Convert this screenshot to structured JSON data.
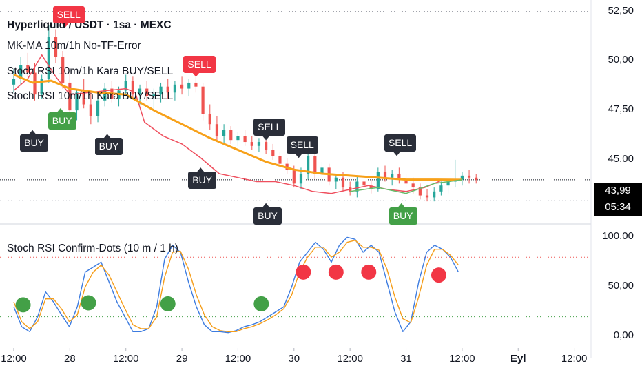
{
  "legend": {
    "symbol": "Hyperliquid / USDT · 1sa · MEXC",
    "ind1": "MK-MA 10m/1h No-TF-Error",
    "ind2": "Stoch RSI 10m/1h Kara BUY/SELL",
    "ind3": "Stoch RSI 10m/1h Kara BUY/SELL",
    "ind4": "Stoch RSI Confirm-Dots (10 m / 1 h)"
  },
  "colors": {
    "up": "#26a69a",
    "down": "#ef5350",
    "ma_orange": "#f7a11a",
    "ma_red": "#ef4f5e",
    "ma_green": "#66bb6a",
    "k_line": "#3d7ce0",
    "d_line": "#f59e1b",
    "dot_green": "#43a047",
    "dot_red": "#f23645",
    "label_dark": "#2a2e39"
  },
  "price_box": {
    "price": "43,99",
    "countdown": "05:34"
  },
  "chart_data": [
    {
      "type": "candlestick",
      "name": "price",
      "ylim": [
        42.0,
        52.8
      ],
      "y_ticks": [
        "52,50",
        "50,00",
        "47,50",
        "45,00"
      ],
      "y_tick_values": [
        52.5,
        50.0,
        47.5,
        45.0
      ],
      "x_ticks": [
        "12:00",
        "28",
        "12:00",
        "29",
        "12:00",
        "30",
        "12:00",
        "31",
        "12:00",
        "Eyl",
        "12:00"
      ],
      "x_tick_hours": [
        12,
        24,
        36,
        48,
        60,
        72,
        84,
        96,
        108,
        120,
        132
      ],
      "last_price": 43.99,
      "candles_start_hour": 12,
      "candles": [
        [
          48.8,
          49.6,
          48.4,
          49.1
        ],
        [
          49.1,
          50.2,
          48.8,
          49.8
        ],
        [
          49.8,
          50.4,
          49.2,
          49.4
        ],
        [
          49.4,
          49.9,
          48.0,
          48.3
        ],
        [
          48.3,
          49.3,
          48.1,
          49.1
        ],
        [
          49.1,
          51.8,
          48.9,
          51.2
        ],
        [
          51.2,
          51.6,
          49.9,
          50.2
        ],
        [
          50.2,
          50.5,
          48.6,
          48.9
        ],
        [
          48.9,
          49.4,
          47.2,
          47.5
        ],
        [
          47.5,
          48.6,
          47.0,
          48.4
        ],
        [
          48.4,
          49.1,
          47.6,
          47.8
        ],
        [
          47.8,
          48.5,
          46.8,
          47.2
        ],
        [
          47.2,
          48.3,
          46.9,
          48.0
        ],
        [
          48.0,
          48.9,
          47.7,
          48.6
        ],
        [
          48.6,
          49.0,
          47.9,
          48.1
        ],
        [
          48.1,
          48.7,
          47.7,
          48.5
        ],
        [
          48.5,
          49.3,
          48.2,
          49.0
        ],
        [
          49.0,
          49.2,
          48.1,
          48.3
        ],
        [
          48.3,
          48.8,
          47.8,
          48.6
        ],
        [
          48.6,
          49.0,
          48.0,
          48.2
        ],
        [
          48.2,
          48.6,
          47.6,
          48.3
        ],
        [
          48.3,
          48.9,
          47.9,
          48.7
        ],
        [
          48.7,
          49.1,
          48.1,
          48.4
        ],
        [
          48.4,
          49.0,
          48.0,
          48.8
        ],
        [
          48.8,
          49.2,
          48.3,
          48.6
        ],
        [
          48.6,
          49.1,
          48.2,
          48.9
        ],
        [
          48.9,
          49.3,
          48.4,
          48.7
        ],
        [
          48.7,
          48.9,
          47.0,
          47.3
        ],
        [
          47.3,
          47.8,
          46.5,
          46.8
        ],
        [
          46.8,
          47.2,
          45.9,
          46.2
        ],
        [
          46.2,
          46.8,
          45.8,
          46.5
        ],
        [
          46.5,
          46.7,
          45.8,
          46.0
        ],
        [
          46.0,
          46.4,
          45.7,
          46.2
        ],
        [
          46.2,
          46.5,
          45.7,
          45.9
        ],
        [
          45.9,
          46.2,
          45.5,
          45.7
        ],
        [
          45.7,
          46.1,
          45.4,
          45.9
        ],
        [
          45.9,
          46.0,
          45.3,
          45.5
        ],
        [
          45.5,
          45.8,
          45.0,
          45.2
        ],
        [
          45.2,
          45.4,
          44.6,
          44.8
        ],
        [
          44.8,
          45.1,
          44.3,
          44.5
        ],
        [
          44.5,
          44.7,
          43.6,
          43.8
        ],
        [
          43.8,
          44.6,
          43.5,
          44.3
        ],
        [
          44.3,
          45.4,
          44.0,
          45.2
        ],
        [
          45.2,
          45.5,
          44.0,
          44.3
        ],
        [
          44.3,
          44.9,
          43.8,
          44.6
        ],
        [
          44.6,
          44.8,
          43.7,
          43.9
        ],
        [
          43.9,
          44.3,
          43.5,
          44.1
        ],
        [
          44.1,
          44.4,
          43.4,
          43.6
        ],
        [
          43.6,
          43.9,
          43.2,
          43.4
        ],
        [
          43.4,
          44.2,
          43.1,
          43.9
        ],
        [
          43.9,
          44.3,
          43.5,
          43.7
        ],
        [
          43.7,
          44.0,
          43.3,
          43.5
        ],
        [
          43.5,
          44.6,
          43.4,
          44.4
        ],
        [
          44.4,
          44.7,
          43.9,
          44.1
        ],
        [
          44.1,
          44.5,
          43.7,
          44.3
        ],
        [
          44.3,
          44.6,
          43.8,
          44.0
        ],
        [
          44.0,
          44.3,
          43.6,
          43.8
        ],
        [
          43.8,
          44.1,
          43.3,
          43.6
        ],
        [
          43.6,
          43.8,
          43.0,
          43.2
        ],
        [
          43.2,
          43.5,
          42.9,
          43.1
        ],
        [
          43.1,
          43.6,
          42.9,
          43.4
        ],
        [
          43.4,
          43.9,
          43.2,
          43.7
        ],
        [
          43.7,
          44.0,
          43.3,
          43.9
        ],
        [
          43.9,
          45.0,
          43.6,
          44.0
        ],
        [
          44.0,
          44.4,
          43.7,
          44.2
        ],
        [
          44.2,
          44.5,
          43.8,
          44.1
        ],
        [
          44.1,
          44.3,
          43.8,
          43.99
        ]
      ],
      "ma_orange": [
        [
          0,
          49.3
        ],
        [
          4,
          48.9
        ],
        [
          8,
          49.0
        ],
        [
          12,
          48.6
        ],
        [
          18,
          48.4
        ],
        [
          24,
          48.3
        ],
        [
          30,
          47.5
        ],
        [
          36,
          46.8
        ],
        [
          42,
          46.1
        ],
        [
          48,
          45.5
        ],
        [
          54,
          44.9
        ],
        [
          60,
          44.5
        ],
        [
          66,
          44.3
        ],
        [
          72,
          44.2
        ],
        [
          78,
          44.1
        ],
        [
          84,
          44.0
        ],
        [
          90,
          44.0
        ],
        [
          96,
          43.99
        ]
      ],
      "ma_red": [
        [
          0,
          48.5
        ],
        [
          3,
          49.1
        ],
        [
          6,
          50.3
        ],
        [
          9,
          49.2
        ],
        [
          12,
          48.3
        ],
        [
          16,
          48.4
        ],
        [
          20,
          48.5
        ],
        [
          24,
          48.6
        ],
        [
          26,
          48.4
        ],
        [
          28,
          46.9
        ],
        [
          32,
          46.2
        ],
        [
          36,
          45.8
        ],
        [
          40,
          45.1
        ],
        [
          44,
          44.3
        ],
        [
          48,
          44.1
        ],
        [
          52,
          43.9
        ],
        [
          56,
          43.9
        ],
        [
          60,
          43.7
        ],
        [
          64,
          43.4
        ],
        [
          68,
          43.3
        ],
        [
          72,
          43.5
        ],
        [
          76,
          43.7
        ],
        [
          80,
          43.5
        ],
        [
          84,
          43.4
        ],
        [
          88,
          43.6
        ],
        [
          92,
          44.0
        ],
        [
          96,
          44.0
        ]
      ],
      "ma_green": [
        [
          72,
          43.4
        ],
        [
          78,
          43.6
        ],
        [
          84,
          43.3
        ],
        [
          90,
          43.8
        ],
        [
          96,
          43.99
        ]
      ],
      "labels": [
        {
          "text": "BUY",
          "style": "dark",
          "hour": 16,
          "price": 46.3,
          "dir": "below"
        },
        {
          "text": "BUY",
          "style": "green",
          "hour": 22,
          "price": 47.4,
          "dir": "below"
        },
        {
          "text": "SELL",
          "style": "red",
          "hour": 23,
          "price": 51.9,
          "dir": "above"
        },
        {
          "text": "BUY",
          "style": "dark",
          "hour": 32,
          "price": 46.1,
          "dir": "below"
        },
        {
          "text": "SELL",
          "style": "red",
          "hour": 51,
          "price": 49.4,
          "dir": "above"
        },
        {
          "text": "BUY",
          "style": "dark",
          "hour": 52,
          "price": 44.4,
          "dir": "below"
        },
        {
          "text": "SELL",
          "style": "dark",
          "hour": 66,
          "price": 46.2,
          "dir": "above"
        },
        {
          "text": "SELL",
          "style": "dark",
          "hour": 73,
          "price": 45.3,
          "dir": "above"
        },
        {
          "text": "BUY",
          "style": "dark",
          "hour": 66,
          "price": 42.6,
          "dir": "below"
        },
        {
          "text": "SELL",
          "style": "dark",
          "hour": 94,
          "price": 45.4,
          "dir": "above"
        },
        {
          "text": "BUY",
          "style": "green",
          "hour": 95,
          "price": 42.6,
          "dir": "below"
        }
      ]
    },
    {
      "type": "line",
      "name": "stoch_rsi",
      "ylim": [
        -8,
        110
      ],
      "y_ticks": [
        "100,00",
        "50,00",
        "0,00"
      ],
      "y_tick_values": [
        100,
        50,
        0
      ],
      "levels": [
        80,
        20
      ],
      "x_start_hour": 12,
      "series": [
        {
          "key": "k",
          "values": [
            30,
            10,
            5,
            20,
            45,
            35,
            22,
            10,
            30,
            65,
            70,
            75,
            55,
            35,
            20,
            5,
            5,
            8,
            30,
            78,
            92,
            85,
            55,
            30,
            12,
            5,
            5,
            4,
            6,
            10,
            12,
            15,
            20,
            25,
            30,
            50,
            75,
            85,
            95,
            88,
            75,
            92,
            100,
            98,
            85,
            92,
            85,
            55,
            25,
            5,
            15,
            55,
            85,
            92,
            88,
            80,
            65
          ]
        },
        {
          "key": "d",
          "values": [
            35,
            15,
            8,
            15,
            38,
            38,
            28,
            15,
            22,
            50,
            65,
            72,
            62,
            45,
            28,
            12,
            8,
            8,
            20,
            60,
            85,
            86,
            68,
            42,
            22,
            10,
            6,
            5,
            5,
            8,
            10,
            13,
            17,
            22,
            28,
            42,
            65,
            80,
            90,
            90,
            80,
            85,
            95,
            97,
            90,
            90,
            87,
            68,
            40,
            18,
            14,
            40,
            72,
            88,
            88,
            82,
            72
          ]
        }
      ],
      "dots": [
        {
          "hour": 14,
          "value": 32,
          "color": "green"
        },
        {
          "hour": 28,
          "value": 34,
          "color": "green"
        },
        {
          "hour": 45,
          "value": 33,
          "color": "green"
        },
        {
          "hour": 65,
          "value": 33,
          "color": "green"
        },
        {
          "hour": 74,
          "value": 65,
          "color": "red"
        },
        {
          "hour": 81,
          "value": 65,
          "color": "red"
        },
        {
          "hour": 88,
          "value": 65,
          "color": "red"
        },
        {
          "hour": 103,
          "value": 62,
          "color": "red"
        }
      ]
    }
  ]
}
